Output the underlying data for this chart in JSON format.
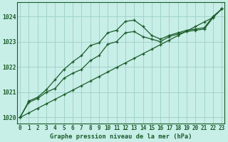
{
  "title": "Graphe pression niveau de la mer (hPa)",
  "bg_color": "#c8eee8",
  "grid_color": "#a0d4c8",
  "line_color": "#1a5c28",
  "hours": [
    0,
    1,
    2,
    3,
    4,
    5,
    6,
    7,
    8,
    9,
    10,
    11,
    12,
    13,
    14,
    15,
    16,
    17,
    18,
    19,
    20,
    21,
    22,
    23
  ],
  "line_smooth": [
    1020.0,
    1020.18,
    1020.36,
    1020.54,
    1020.72,
    1020.9,
    1021.08,
    1021.26,
    1021.44,
    1021.62,
    1021.8,
    1021.98,
    1022.16,
    1022.34,
    1022.52,
    1022.7,
    1022.88,
    1023.06,
    1023.24,
    1023.42,
    1023.6,
    1023.78,
    1023.96,
    1024.3
  ],
  "line_mid": [
    1020.0,
    1020.6,
    1020.75,
    1021.0,
    1021.15,
    1021.55,
    1021.75,
    1021.9,
    1022.25,
    1022.45,
    1022.9,
    1023.0,
    1023.35,
    1023.4,
    1023.2,
    1023.1,
    1023.0,
    1023.2,
    1023.3,
    1023.4,
    1023.45,
    1023.5,
    1023.95,
    1024.3
  ],
  "line_top": [
    1020.0,
    1020.65,
    1020.8,
    1021.1,
    1021.5,
    1021.9,
    1022.2,
    1022.45,
    1022.85,
    1022.95,
    1023.35,
    1023.45,
    1023.8,
    1023.85,
    1023.6,
    1023.25,
    1023.1,
    1023.25,
    1023.35,
    1023.45,
    1023.5,
    1023.55,
    1024.0,
    1024.3
  ],
  "ylim": [
    1019.75,
    1024.55
  ],
  "yticks": [
    1020,
    1021,
    1022,
    1023,
    1024
  ],
  "xticks": [
    0,
    1,
    2,
    3,
    4,
    5,
    6,
    7,
    8,
    9,
    10,
    11,
    12,
    13,
    14,
    15,
    16,
    17,
    18,
    19,
    20,
    21,
    22,
    23
  ],
  "markersize": 3.5,
  "linewidth": 0.9,
  "tick_fontsize": 5.5,
  "label_fontsize": 6.2
}
